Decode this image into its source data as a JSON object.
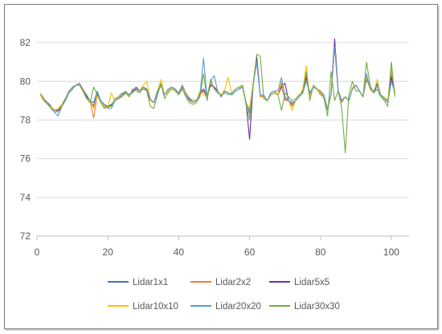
{
  "chart_data": {
    "type": "line",
    "title": "",
    "xlabel": "",
    "ylabel": "",
    "xlim": [
      0,
      105
    ],
    "ylim": [
      72,
      83
    ],
    "x_ticks": [
      0,
      20,
      40,
      60,
      80,
      100
    ],
    "x_tick_labels": [
      "0",
      "20",
      "40",
      "60",
      "80",
      "100"
    ],
    "y_ticks": [
      72,
      74,
      76,
      78,
      80,
      82
    ],
    "y_tick_labels": [
      "72",
      "74",
      "76",
      "78",
      "80",
      "82"
    ],
    "grid": "horizontal",
    "legend_position": "bottom",
    "x": [
      1,
      2,
      3,
      4,
      5,
      6,
      7,
      8,
      9,
      10,
      11,
      12,
      13,
      14,
      15,
      16,
      17,
      18,
      19,
      20,
      21,
      22,
      23,
      24,
      25,
      26,
      27,
      28,
      29,
      30,
      31,
      32,
      33,
      34,
      35,
      36,
      37,
      38,
      39,
      40,
      41,
      42,
      43,
      44,
      45,
      46,
      47,
      48,
      49,
      50,
      51,
      52,
      53,
      54,
      55,
      56,
      57,
      58,
      59,
      60,
      61,
      62,
      63,
      64,
      65,
      66,
      67,
      68,
      69,
      70,
      71,
      72,
      73,
      74,
      75,
      76,
      77,
      78,
      79,
      80,
      81,
      82,
      83,
      84,
      85,
      86,
      87,
      88,
      89,
      90,
      91,
      92,
      93,
      94,
      95,
      96,
      97,
      98,
      99,
      100,
      101
    ],
    "series": [
      {
        "name": "Lidar1x1",
        "color": "#4472c4",
        "values": [
          79.3,
          79.0,
          78.9,
          78.7,
          78.5,
          78.5,
          78.7,
          79.0,
          79.4,
          79.6,
          79.8,
          79.9,
          79.5,
          79.2,
          79.0,
          78.9,
          79.4,
          79.0,
          78.8,
          78.7,
          78.8,
          79.0,
          79.1,
          79.3,
          79.4,
          79.3,
          79.5,
          79.6,
          79.5,
          79.7,
          79.6,
          79.0,
          78.9,
          79.4,
          79.8,
          79.3,
          79.5,
          79.7,
          79.6,
          79.4,
          79.7,
          79.4,
          79.1,
          79.0,
          79.0,
          79.4,
          79.5,
          79.2,
          79.8,
          79.7,
          79.5,
          79.2,
          79.5,
          79.4,
          79.3,
          79.5,
          79.6,
          79.7,
          78.9,
          78.4,
          79.8,
          81.2,
          79.3,
          79.2,
          79.0,
          79.4,
          79.5,
          79.3,
          79.9,
          79.1,
          79.0,
          78.8,
          79.0,
          79.2,
          79.5,
          80.2,
          79.4,
          79.7,
          79.6,
          79.4,
          79.2,
          78.6,
          79.3,
          82.0,
          79.5,
          79.0,
          79.2,
          79.0,
          79.6,
          79.8,
          79.5,
          79.2,
          80.2,
          79.7,
          79.4,
          79.9,
          79.3,
          79.1,
          79.0,
          80.3,
          79.4
        ]
      },
      {
        "name": "Lidar2x2",
        "color": "#ed7d31",
        "values": [
          79.4,
          79.1,
          78.9,
          78.6,
          78.4,
          78.5,
          78.8,
          79.1,
          79.4,
          79.7,
          79.8,
          79.9,
          79.6,
          79.3,
          79.0,
          78.1,
          79.3,
          79.0,
          78.7,
          78.6,
          78.8,
          79.0,
          79.1,
          79.2,
          79.4,
          79.3,
          79.5,
          79.6,
          79.5,
          79.6,
          79.5,
          79.0,
          78.9,
          79.4,
          79.9,
          79.3,
          79.5,
          79.7,
          79.6,
          79.3,
          79.7,
          79.4,
          79.1,
          78.9,
          79.0,
          79.3,
          79.5,
          79.2,
          79.9,
          79.7,
          79.5,
          79.2,
          79.5,
          79.4,
          79.3,
          79.5,
          79.6,
          79.8,
          78.9,
          78.5,
          79.8,
          81.3,
          79.2,
          79.2,
          79.0,
          79.4,
          79.5,
          79.3,
          79.8,
          79.0,
          79.0,
          78.7,
          79.0,
          79.2,
          79.4,
          80.4,
          79.3,
          79.7,
          79.6,
          79.3,
          79.2,
          78.5,
          79.4,
          82.0,
          79.5,
          78.9,
          79.2,
          79.0,
          79.6,
          79.8,
          79.5,
          79.2,
          80.2,
          79.6,
          79.4,
          79.8,
          79.3,
          79.1,
          79.0,
          80.6,
          79.3
        ]
      },
      {
        "name": "Lidar5x5",
        "color": "#7030a0",
        "values": [
          79.3,
          79.0,
          78.9,
          78.7,
          78.5,
          78.5,
          78.7,
          79.0,
          79.4,
          79.6,
          79.8,
          79.9,
          79.5,
          79.2,
          79.0,
          78.7,
          79.4,
          79.0,
          78.8,
          78.7,
          78.8,
          79.0,
          79.1,
          79.3,
          79.4,
          79.3,
          79.5,
          79.7,
          79.5,
          79.7,
          79.6,
          79.0,
          78.9,
          79.4,
          79.8,
          79.3,
          79.5,
          79.7,
          79.6,
          79.4,
          79.8,
          79.4,
          79.1,
          79.0,
          79.0,
          79.4,
          79.6,
          79.2,
          79.8,
          79.7,
          79.5,
          79.2,
          79.5,
          79.4,
          79.3,
          79.5,
          79.6,
          79.7,
          78.9,
          77.0,
          79.8,
          81.3,
          79.3,
          79.2,
          79.0,
          79.4,
          79.5,
          79.3,
          79.7,
          79.9,
          79.0,
          78.9,
          79.0,
          79.2,
          79.5,
          80.2,
          79.4,
          79.7,
          79.6,
          79.4,
          79.2,
          78.6,
          79.3,
          82.2,
          79.5,
          79.0,
          79.2,
          79.0,
          79.6,
          79.8,
          79.5,
          79.2,
          80.1,
          79.7,
          79.4,
          79.8,
          79.3,
          79.1,
          79.0,
          80.2,
          79.4
        ]
      },
      {
        "name": "Lidar10x10",
        "color": "#ffc000",
        "values": [
          79.4,
          79.0,
          78.8,
          78.7,
          78.5,
          78.6,
          78.8,
          79.0,
          79.4,
          79.7,
          79.8,
          79.8,
          79.5,
          79.1,
          79.0,
          78.6,
          79.3,
          79.0,
          78.7,
          78.7,
          79.4,
          79.0,
          79.2,
          79.3,
          79.5,
          79.2,
          79.6,
          79.5,
          79.5,
          79.8,
          80.0,
          79.0,
          78.9,
          79.5,
          80.1,
          79.3,
          79.5,
          79.7,
          79.5,
          79.4,
          79.8,
          79.4,
          79.0,
          79.0,
          79.0,
          79.5,
          79.3,
          79.2,
          80.0,
          79.6,
          79.4,
          79.3,
          79.6,
          80.2,
          79.3,
          79.5,
          79.6,
          79.8,
          78.9,
          78.6,
          79.9,
          81.0,
          79.3,
          79.2,
          79.0,
          79.4,
          79.5,
          79.3,
          80.0,
          79.2,
          79.0,
          78.5,
          79.0,
          79.2,
          79.6,
          80.8,
          79.2,
          79.7,
          79.6,
          79.4,
          79.2,
          78.6,
          79.3,
          81.8,
          79.4,
          79.0,
          79.2,
          79.0,
          79.7,
          79.8,
          79.5,
          79.2,
          80.2,
          79.7,
          79.4,
          80.1,
          79.3,
          79.2,
          79.0,
          80.8,
          79.3
        ]
      },
      {
        "name": "Lidar20x20",
        "color": "#5b9bd5",
        "values": [
          79.3,
          79.0,
          78.9,
          78.6,
          78.4,
          78.2,
          78.7,
          79.0,
          79.4,
          79.6,
          79.8,
          79.9,
          79.5,
          79.3,
          79.0,
          78.9,
          79.5,
          79.0,
          78.8,
          78.6,
          78.6,
          79.0,
          79.1,
          79.3,
          79.5,
          79.3,
          79.4,
          79.6,
          79.5,
          79.7,
          79.6,
          79.1,
          78.9,
          79.5,
          79.8,
          79.3,
          79.6,
          79.7,
          79.6,
          79.4,
          79.8,
          79.3,
          79.0,
          78.9,
          79.0,
          79.3,
          81.2,
          79.2,
          80.0,
          80.3,
          79.5,
          79.2,
          79.5,
          79.4,
          79.3,
          79.5,
          79.6,
          79.7,
          78.9,
          78.3,
          79.8,
          81.0,
          79.3,
          79.3,
          79.0,
          79.4,
          79.5,
          79.5,
          80.2,
          79.2,
          79.0,
          78.9,
          79.0,
          79.2,
          79.4,
          80.0,
          79.4,
          79.7,
          79.6,
          79.5,
          79.3,
          78.5,
          79.4,
          81.8,
          79.5,
          79.0,
          79.2,
          79.0,
          79.6,
          79.8,
          79.5,
          79.2,
          80.4,
          79.6,
          79.5,
          79.8,
          79.3,
          79.1,
          78.9,
          80.0,
          79.4
        ]
      },
      {
        "name": "Lidar30x30",
        "color": "#70ad47",
        "values": [
          79.3,
          79.0,
          78.8,
          78.6,
          78.5,
          78.4,
          78.7,
          79.1,
          79.5,
          79.7,
          79.8,
          79.8,
          79.5,
          79.1,
          78.9,
          79.7,
          79.3,
          78.9,
          78.6,
          78.7,
          78.7,
          79.1,
          79.2,
          79.4,
          79.4,
          79.2,
          79.6,
          79.5,
          79.4,
          79.7,
          79.5,
          78.7,
          78.6,
          79.3,
          79.9,
          79.1,
          79.4,
          79.6,
          79.5,
          79.3,
          79.6,
          79.2,
          78.9,
          78.8,
          78.9,
          79.2,
          80.4,
          79.0,
          80.1,
          79.6,
          79.4,
          79.3,
          79.4,
          79.3,
          79.4,
          79.6,
          79.7,
          79.8,
          78.8,
          78.0,
          79.8,
          81.4,
          81.3,
          79.1,
          79.0,
          79.3,
          79.4,
          79.3,
          78.5,
          79.4,
          79.2,
          79.0,
          79.1,
          79.3,
          79.4,
          80.5,
          79.0,
          79.8,
          79.6,
          79.5,
          79.1,
          78.2,
          80.5,
          79.0,
          79.5,
          78.6,
          76.3,
          79.3,
          80.0,
          79.5,
          79.5,
          79.2,
          81.0,
          79.8,
          79.4,
          79.6,
          79.2,
          79.0,
          78.7,
          81.0,
          79.2
        ]
      }
    ]
  }
}
